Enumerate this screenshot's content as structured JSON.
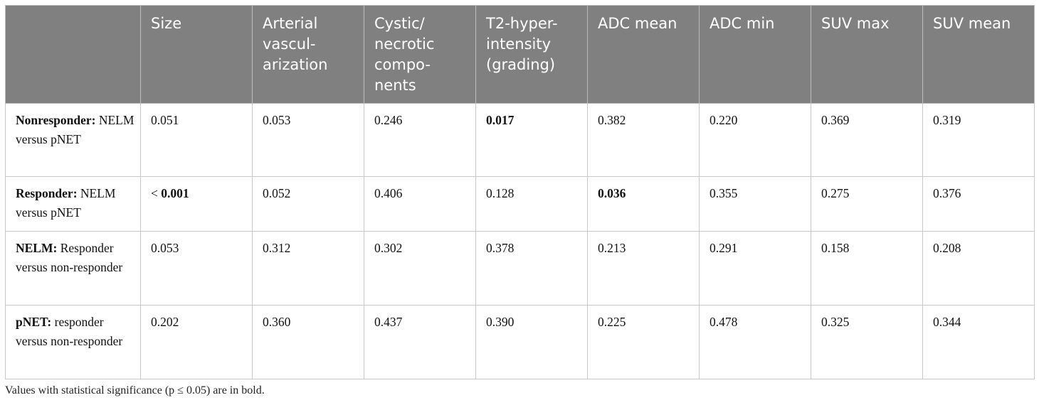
{
  "columns": [
    "",
    "Size",
    "Arterial vascul-arization",
    "Cystic/ necrotic compo-nents",
    "T2-hyper-intensity (grading)",
    "ADC mean",
    "ADC min",
    "SUV max",
    "SUV mean"
  ],
  "rows": [
    {
      "label_bold": "Nonresponder:",
      "label_rest": " NELM versus pNET",
      "cells": [
        {
          "pre": "",
          "value": "0.051",
          "bold": false
        },
        {
          "pre": "",
          "value": "0.053",
          "bold": false
        },
        {
          "pre": "",
          "value": "0.246",
          "bold": false
        },
        {
          "pre": "",
          "value": "0.017",
          "bold": true
        },
        {
          "pre": "",
          "value": "0.382",
          "bold": false
        },
        {
          "pre": "",
          "value": "0.220",
          "bold": false
        },
        {
          "pre": "",
          "value": "0.369",
          "bold": false
        },
        {
          "pre": "",
          "value": "0.319",
          "bold": false
        }
      ]
    },
    {
      "label_bold": "Responder:",
      "label_rest": " NELM versus pNET",
      "cells": [
        {
          "pre": "< ",
          "value": "0.001",
          "bold": true
        },
        {
          "pre": "",
          "value": "0.052",
          "bold": false
        },
        {
          "pre": "",
          "value": "0.406",
          "bold": false
        },
        {
          "pre": "",
          "value": "0.128",
          "bold": false
        },
        {
          "pre": "",
          "value": "0.036",
          "bold": true
        },
        {
          "pre": "",
          "value": "0.355",
          "bold": false
        },
        {
          "pre": "",
          "value": "0.275",
          "bold": false
        },
        {
          "pre": "",
          "value": "0.376",
          "bold": false
        }
      ]
    },
    {
      "label_bold": "NELM:",
      "label_rest": " Responder versus non-responder",
      "cells": [
        {
          "pre": "",
          "value": "0.053",
          "bold": false
        },
        {
          "pre": "",
          "value": "0.312",
          "bold": false
        },
        {
          "pre": "",
          "value": "0.302",
          "bold": false
        },
        {
          "pre": "",
          "value": "0.378",
          "bold": false
        },
        {
          "pre": "",
          "value": "0.213",
          "bold": false
        },
        {
          "pre": "",
          "value": "0.291",
          "bold": false
        },
        {
          "pre": "",
          "value": "0.158",
          "bold": false
        },
        {
          "pre": "",
          "value": "0.208",
          "bold": false
        }
      ]
    },
    {
      "label_bold": "pNET:",
      "label_rest": " responder versus non-responder",
      "cells": [
        {
          "pre": "",
          "value": "0.202",
          "bold": false
        },
        {
          "pre": "",
          "value": "0.360",
          "bold": false
        },
        {
          "pre": "",
          "value": "0.437",
          "bold": false
        },
        {
          "pre": "",
          "value": "0.390",
          "bold": false
        },
        {
          "pre": "",
          "value": "0.225",
          "bold": false
        },
        {
          "pre": "",
          "value": "0.478",
          "bold": false
        },
        {
          "pre": "",
          "value": "0.325",
          "bold": false
        },
        {
          "pre": "",
          "value": "0.344",
          "bold": false
        }
      ]
    }
  ],
  "footnote": "Values with statistical significance (p ≤ 0.05) are in bold.",
  "colors": {
    "header_bg": "#808080",
    "header_text": "#ffffff",
    "border": "#c8c8c8"
  }
}
